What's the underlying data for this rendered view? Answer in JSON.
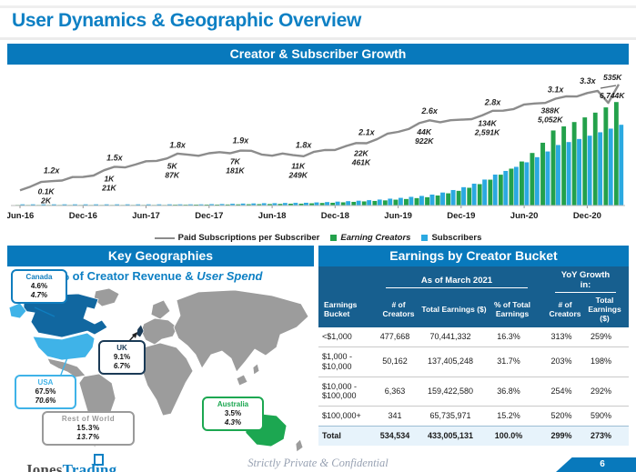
{
  "slide": {
    "title": "User Dynamics & Geographic Overview",
    "footer": {
      "logo_part1": "Jones",
      "logo_part2": "Trading",
      "confidential": "Strictly Private & Confidential",
      "page": "6"
    }
  },
  "colors": {
    "accent_blue": "#0879BC",
    "title_blue": "#0E80C4",
    "table_header_blue": "#175F8F",
    "bar_green": "#23A14B",
    "bar_blue": "#2BA9E1",
    "line_gray": "#8C8C8C",
    "map_gray": "#9C9C9C",
    "canada_blue": "#1167A0",
    "usa_blue": "#3FB3E8",
    "uk_navy": "#1A3A56",
    "australia_green": "#1CA751",
    "total_row_bg": "#E7F3FB"
  },
  "chart_data": {
    "type": "combo-bar-line",
    "title": "Creator & Subscriber Growth",
    "x_tick_labels": [
      "Jun-16",
      "Dec-16",
      "Jun-17",
      "Dec-17",
      "Jun-18",
      "Dec-18",
      "Jun-19",
      "Dec-19",
      "Jun-20",
      "Dec-20"
    ],
    "x_tick_month_index": [
      0,
      6,
      12,
      18,
      24,
      30,
      36,
      42,
      48,
      54
    ],
    "months_total": 58,
    "legend": [
      "Paid Subscriptions per Subscriber",
      "Earning Creators",
      "Subscribers"
    ],
    "line_series": {
      "name": "Paid Subscriptions per Subscriber",
      "unit": "x",
      "anchors": [
        [
          0,
          1.0
        ],
        [
          3,
          1.2
        ],
        [
          6,
          1.28
        ],
        [
          9,
          1.5
        ],
        [
          12,
          1.62
        ],
        [
          15,
          1.8
        ],
        [
          18,
          1.82
        ],
        [
          21,
          1.9
        ],
        [
          24,
          1.8
        ],
        [
          27,
          1.8
        ],
        [
          30,
          1.95
        ],
        [
          33,
          2.1
        ],
        [
          36,
          2.35
        ],
        [
          39,
          2.6
        ],
        [
          42,
          2.6
        ],
        [
          45,
          2.8
        ],
        [
          48,
          2.95
        ],
        [
          51,
          3.1
        ],
        [
          53,
          3.2
        ],
        [
          55,
          3.3
        ],
        [
          56,
          3.02
        ],
        [
          57,
          3.45
        ]
      ],
      "labels": [
        {
          "m": 3,
          "text": "1.2x"
        },
        {
          "m": 9,
          "text": "1.5x"
        },
        {
          "m": 15,
          "text": "1.8x"
        },
        {
          "m": 21,
          "text": "1.9x"
        },
        {
          "m": 27,
          "text": "1.8x"
        },
        {
          "m": 33,
          "text": "2.1x"
        },
        {
          "m": 39,
          "text": "2.6x"
        },
        {
          "m": 45,
          "text": "2.8x"
        },
        {
          "m": 51,
          "text": "3.1x"
        },
        {
          "m": 55,
          "text": "3.3x"
        }
      ]
    },
    "bar_series": [
      {
        "name": "Earning Creators",
        "color": "#23A14B",
        "unit": "K creators",
        "anchors": [
          [
            0,
            0.05
          ],
          [
            3,
            0.1
          ],
          [
            9,
            1
          ],
          [
            15,
            5
          ],
          [
            21,
            7
          ],
          [
            27,
            11
          ],
          [
            33,
            22
          ],
          [
            39,
            44
          ],
          [
            45,
            134
          ],
          [
            51,
            388
          ],
          [
            57,
            535
          ]
        ]
      },
      {
        "name": "Subscribers",
        "color": "#2BA9E1",
        "unit": "K subscribers",
        "anchors": [
          [
            0,
            1
          ],
          [
            3,
            2
          ],
          [
            9,
            21
          ],
          [
            15,
            87
          ],
          [
            21,
            181
          ],
          [
            27,
            249
          ],
          [
            33,
            461
          ],
          [
            39,
            922
          ],
          [
            45,
            2591
          ],
          [
            51,
            5052
          ],
          [
            57,
            6744
          ]
        ]
      }
    ],
    "point_labels": [
      {
        "m": 3,
        "creators": "0.1K",
        "subscribers": "2K"
      },
      {
        "m": 9,
        "creators": "1K",
        "subscribers": "21K"
      },
      {
        "m": 15,
        "creators": "5K",
        "subscribers": "87K"
      },
      {
        "m": 21,
        "creators": "7K",
        "subscribers": "181K"
      },
      {
        "m": 27,
        "creators": "11K",
        "subscribers": "249K"
      },
      {
        "m": 33,
        "creators": "22K",
        "subscribers": "461K"
      },
      {
        "m": 39,
        "creators": "44K",
        "subscribers": "922K"
      },
      {
        "m": 45,
        "creators": "134K",
        "subscribers": "2,591K"
      },
      {
        "m": 51,
        "creators": "388K",
        "subscribers": "5,052K"
      }
    ],
    "final_label": {
      "m": 57,
      "creators": "535K",
      "subscribers": "6,744K"
    }
  },
  "geo": {
    "header": "Key Geographies",
    "subtitle_regular": "% of Creator Revenue & ",
    "subtitle_italic": "User Spend",
    "regions": [
      {
        "id": "canada",
        "name": "Canada",
        "revenue_pct": "4.6%",
        "spend_pct": "4.7%",
        "color": "#0F7DBE"
      },
      {
        "id": "usa",
        "name": "USA",
        "revenue_pct": "67.5%",
        "spend_pct": "70.6%",
        "color": "#3FB3E8"
      },
      {
        "id": "uk",
        "name": "UK",
        "revenue_pct": "9.1%",
        "spend_pct": "6.7%",
        "color": "#1A3A56"
      },
      {
        "id": "australia",
        "name": "Australia",
        "revenue_pct": "3.5%",
        "spend_pct": "4.3%",
        "color": "#1CA751"
      },
      {
        "id": "rest-of-world",
        "name": "Rest of World",
        "revenue_pct": "15.3%",
        "spend_pct": "13.7%",
        "color": "#9A9A9A"
      }
    ]
  },
  "table": {
    "title": "Earnings by Creator Bucket",
    "group_headers": [
      "As of March 2021",
      "YoY Growth in:"
    ],
    "columns": [
      "Earnings Bucket",
      "# of Creators",
      "Total Earnings ($)",
      "% of Total Earnings",
      "# of Creators",
      "Total Earnings ($)"
    ],
    "rows": [
      [
        "<$1,000",
        "477,668",
        "70,441,332",
        "16.3%",
        "313%",
        "259%"
      ],
      [
        "$1,000 - $10,000",
        "50,162",
        "137,405,248",
        "31.7%",
        "203%",
        "198%"
      ],
      [
        "$10,000 - $100,000",
        "6,363",
        "159,422,580",
        "36.8%",
        "254%",
        "292%"
      ],
      [
        "$100,000+",
        "341",
        "65,735,971",
        "15.2%",
        "520%",
        "590%"
      ]
    ],
    "total_row": [
      "Total",
      "534,534",
      "433,005,131",
      "100.0%",
      "299%",
      "273%"
    ]
  }
}
